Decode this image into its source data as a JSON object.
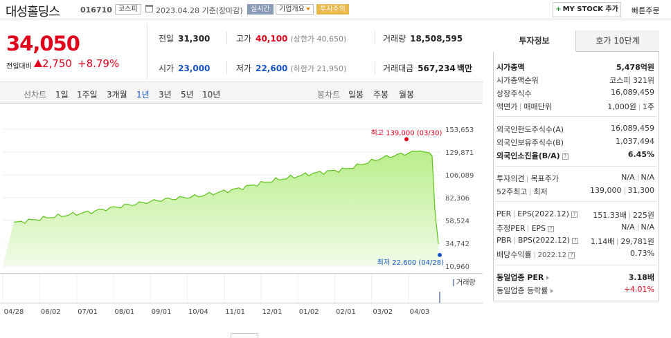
{
  "header": {
    "stock_name": "대성홀딩스",
    "stock_code": "016710",
    "market": "코스피",
    "date_text": "2023.04.28 기준(장마감)",
    "realtime_badge": "실시간",
    "company_overview": "기업개요",
    "warning_badge": "투자주의",
    "mystock_label": "MY STOCK 추가",
    "quick_order_label": "빠른주문"
  },
  "price": {
    "current": "34,050",
    "change_label": "전일대비",
    "change_amount": "2,750",
    "change_rate": "+8.79%",
    "up_color": "#e0001b"
  },
  "quote": {
    "prev_label": "전일",
    "prev_value": "31,300",
    "high_label": "고가",
    "high_value": "40,100",
    "upper_limit": "(상한가 40,650)",
    "volume_label": "거래량",
    "volume_value": "18,508,595",
    "open_label": "시가",
    "open_value": "23,000",
    "low_label": "저가",
    "low_value": "22,600",
    "lower_limit": "(하한가 21,950)",
    "amount_label": "거래대금",
    "amount_value": "567,234",
    "amount_unit": "백만"
  },
  "toolbar": {
    "line_chart_label": "선차트",
    "periods": [
      "1일",
      "1주일",
      "3개월",
      "1년",
      "3년",
      "5년",
      "10년"
    ],
    "active_period": "1년",
    "candle_chart_label": "봉차트",
    "candle_periods": [
      "일봉",
      "주봉",
      "월봉"
    ]
  },
  "chart_data": {
    "type": "area",
    "x": [
      "04/28",
      "06/02",
      "07/01",
      "08/01",
      "09/01",
      "10/04",
      "11/01",
      "12/01",
      "01/02",
      "02/01",
      "03/02",
      "04/03",
      "04/28"
    ],
    "y": [
      56000,
      62000,
      67000,
      74000,
      80000,
      84000,
      91000,
      100000,
      107000,
      112000,
      124000,
      131000,
      34050
    ],
    "price_ticks": [
      "153,653",
      "129,871",
      "106,089",
      "82,306",
      "58,524",
      "34,742",
      "10,960"
    ],
    "ylim": [
      10960,
      153653
    ],
    "max_label": "최고 139,000 (03/30)",
    "min_label": "최저 22,600 (04/28)",
    "volume_label": "거래량",
    "line_color": "#5cc21a",
    "fill_color": "#b8ee8a"
  },
  "panel": {
    "tab_invest": "투자정보",
    "tab_hoga": "호가 10단계",
    "rows": {
      "market_cap_label": "시가총액",
      "market_cap_value": "5,478억원",
      "rank_label": "시가총액순위",
      "rank_value": "코스피 321위",
      "shares_label": "상장주식수",
      "shares_value": "16,089,459",
      "par_label": "액면가",
      "trade_unit_label": "매매단위",
      "par_value": "1,000원",
      "unit_value": "1주",
      "foreign_limit_label": "외국인한도주식수(A)",
      "foreign_limit_value": "16,089,459",
      "foreign_hold_label": "외국인보유주식수(B)",
      "foreign_hold_value": "1,037,494",
      "foreign_ratio_label": "외국인소진율(B/A)",
      "foreign_ratio_value": "6.45%",
      "opinion_label": "투자의견",
      "target_label": "목표주가",
      "opinion_value": "N/A",
      "target_value": "N/A",
      "w52_high_label": "52주최고",
      "w52_low_label": "최저",
      "w52_high_value": "139,000",
      "w52_low_value": "31,300",
      "per_label": "PER",
      "eps_label": "EPS(2022.12)",
      "per_value": "151.33배",
      "eps_value": "225원",
      "est_per_label": "추정PER",
      "est_eps_label": "EPS",
      "est_per_value": "N/A",
      "est_eps_value": "N/A",
      "pbr_label": "PBR",
      "bps_label": "BPS(2022.12)",
      "pbr_value": "1.14배",
      "bps_value": "29,781원",
      "div_label": "배당수익률",
      "div_period": "2022.12",
      "div_value": "0.73%",
      "sector_per_label": "동일업종 PER",
      "sector_per_value": "3.18배",
      "sector_rate_label": "동일업종 등락률",
      "sector_rate_value": "+4.01%"
    }
  }
}
